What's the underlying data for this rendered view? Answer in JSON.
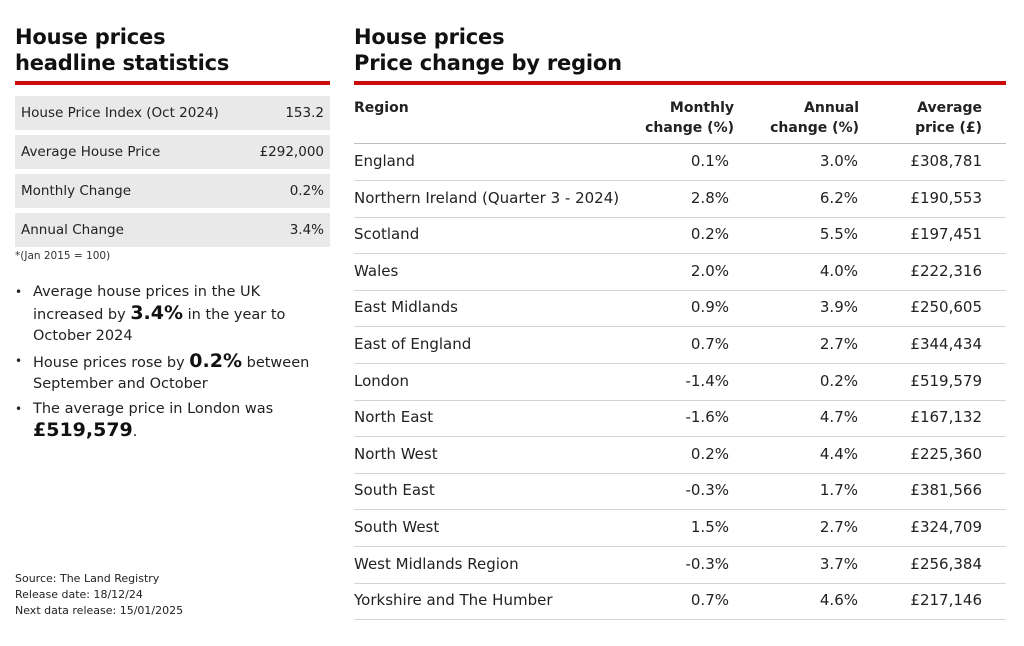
{
  "left": {
    "title_line1": "House prices",
    "title_line2": "headline statistics",
    "stats": [
      {
        "label": "House Price Index (Oct 2024)",
        "value": "153.2"
      },
      {
        "label": "Average House Price",
        "value": "£292,000"
      },
      {
        "label": "Monthly Change",
        "value": "0.2%"
      },
      {
        "label": "Annual Change",
        "value": "3.4%"
      }
    ],
    "footnote": "*(Jan 2015 = 100)",
    "bullets": [
      {
        "pre": "Average house prices in the UK increased by ",
        "bold": "3.4%",
        "post": " in the year to October 2024"
      },
      {
        "pre": "House prices rose by ",
        "bold": "0.2%",
        "post": " between September and October"
      },
      {
        "pre": "The average price in London was ",
        "bold": "£519,579",
        "post": "."
      }
    ],
    "source": "Source: The Land Registry",
    "release_date": "Release date: 18/12/24",
    "next_release": "Next data release: 15/01/2025"
  },
  "right": {
    "title_line1": "House prices",
    "title_line2": "Price change by region"
  },
  "colors": {
    "accent": "#cc0a0a",
    "stat_bg": "#e9e9ea"
  },
  "chart_data": {
    "type": "table",
    "title": "Price change by region",
    "columns": [
      {
        "key": "region",
        "label": "Region"
      },
      {
        "key": "monthly",
        "label_line1": "Monthly",
        "label_line2": "change (%)"
      },
      {
        "key": "annual",
        "label_line1": "Annual",
        "label_line2": "change (%)"
      },
      {
        "key": "price",
        "label_line1": "Average",
        "label_line2": "price (£)"
      }
    ],
    "rows": [
      {
        "region": "England",
        "monthly": "0.1%",
        "annual": "3.0%",
        "price": "£308,781"
      },
      {
        "region": "Northern Ireland (Quarter 3 - 2024)",
        "monthly": "2.8%",
        "annual": "6.2%",
        "price": "£190,553"
      },
      {
        "region": "Scotland",
        "monthly": "0.2%",
        "annual": "5.5%",
        "price": "£197,451"
      },
      {
        "region": "Wales",
        "monthly": "2.0%",
        "annual": "4.0%",
        "price": "£222,316"
      },
      {
        "region": "East Midlands",
        "monthly": "0.9%",
        "annual": "3.9%",
        "price": "£250,605"
      },
      {
        "region": "East of England",
        "monthly": "0.7%",
        "annual": "2.7%",
        "price": "£344,434"
      },
      {
        "region": "London",
        "monthly": "-1.4%",
        "annual": "0.2%",
        "price": "£519,579"
      },
      {
        "region": "North East",
        "monthly": "-1.6%",
        "annual": "4.7%",
        "price": "£167,132"
      },
      {
        "region": "North West",
        "monthly": "0.2%",
        "annual": "4.4%",
        "price": "£225,360"
      },
      {
        "region": "South East",
        "monthly": "-0.3%",
        "annual": "1.7%",
        "price": "£381,566"
      },
      {
        "region": "South West",
        "monthly": "1.5%",
        "annual": "2.7%",
        "price": "£324,709"
      },
      {
        "region": "West Midlands Region",
        "monthly": "-0.3%",
        "annual": "3.7%",
        "price": "£256,384"
      },
      {
        "region": "Yorkshire and The Humber",
        "monthly": "0.7%",
        "annual": "4.6%",
        "price": "£217,146"
      }
    ]
  }
}
